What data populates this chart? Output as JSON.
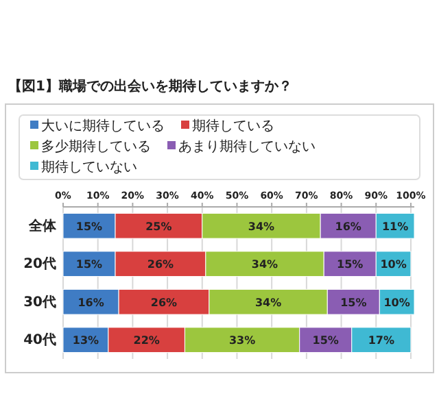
{
  "chart_data": {
    "type": "bar",
    "orientation": "horizontal",
    "stacked": true,
    "title": "【図1】職場での出会いを期待していますか？",
    "categories": [
      "全体",
      "20代",
      "30代",
      "40代"
    ],
    "series": [
      {
        "name": "大いに期待している",
        "color": "#3f7cc4",
        "values": [
          15,
          15,
          16,
          13
        ],
        "value_labels": [
          "15%",
          "15%",
          "16%",
          "13%"
        ]
      },
      {
        "name": "期待している",
        "color": "#d8403f",
        "values": [
          25,
          26,
          26,
          22
        ],
        "value_labels": [
          "25%",
          "26%",
          "26%",
          "22%"
        ]
      },
      {
        "name": "多少期待している",
        "color": "#9cc63e",
        "values": [
          34,
          34,
          34,
          33
        ],
        "value_labels": [
          "34%",
          "34%",
          "34%",
          "33%"
        ]
      },
      {
        "name": "あまり期待していない",
        "color": "#8a5db3",
        "values": [
          16,
          15,
          15,
          15
        ],
        "value_labels": [
          "16%",
          "15%",
          "15%",
          "15%"
        ]
      },
      {
        "name": "期待していない",
        "color": "#3fb9d3",
        "values": [
          11,
          10,
          10,
          17
        ],
        "value_labels": [
          "11%",
          "10%",
          "10%",
          "17%"
        ]
      }
    ],
    "xlim": [
      0,
      101
    ],
    "xticks": [
      {
        "value": 0,
        "label": "0%"
      },
      {
        "value": 10,
        "label": "10%"
      },
      {
        "value": 20,
        "label": "20%"
      },
      {
        "value": 30,
        "label": "30%"
      },
      {
        "value": 40,
        "label": "40%"
      },
      {
        "value": 50,
        "label": "50%"
      },
      {
        "value": 60,
        "label": "60%"
      },
      {
        "value": 70,
        "label": "70%"
      },
      {
        "value": 80,
        "label": "80%"
      },
      {
        "value": 90,
        "label": "90%"
      },
      {
        "value": 100,
        "label": "100%"
      }
    ],
    "grid": "x",
    "legend": "top"
  }
}
